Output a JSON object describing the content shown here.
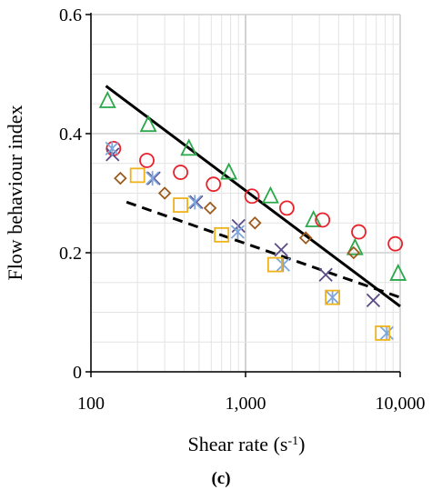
{
  "figure": {
    "caption": "(c)"
  },
  "chart_data": {
    "type": "scatter",
    "xlabel": "Shear rate (s",
    "xlabel_sup": "-1",
    "xlabel_end": ")",
    "ylabel": "Flow behaviour index",
    "x_scale": "log",
    "xlim": [
      100,
      10000
    ],
    "ylim": [
      0,
      0.6
    ],
    "x_ticks": [
      100,
      1000,
      10000
    ],
    "x_tick_labels": [
      "100",
      "1,000",
      "10,000"
    ],
    "y_ticks": [
      0,
      0.2,
      0.4,
      0.6
    ],
    "y_tick_labels": [
      "0",
      "0.2",
      "0.4",
      "0.6"
    ],
    "grid": true,
    "legend": "none",
    "series": [
      {
        "marker": "triangle",
        "color": "#2aa84a",
        "x": [
          128,
          235,
          430,
          780,
          1450,
          2750,
          5100,
          9700
        ],
        "y": [
          0.455,
          0.415,
          0.375,
          0.335,
          0.295,
          0.255,
          0.208,
          0.165
        ]
      },
      {
        "marker": "circle",
        "color": "#e8212a",
        "x": [
          140,
          230,
          380,
          620,
          1100,
          1850,
          3150,
          5400,
          9300
        ],
        "y": [
          0.375,
          0.355,
          0.335,
          0.315,
          0.295,
          0.275,
          0.255,
          0.235,
          0.215
        ]
      },
      {
        "marker": "x",
        "color": "#5b4a86",
        "x": [
          138,
          255,
          480,
          900,
          1700,
          3300,
          6700
        ],
        "y": [
          0.365,
          0.325,
          0.285,
          0.245,
          0.205,
          0.163,
          0.12
        ]
      },
      {
        "marker": "asterisk",
        "color": "#7ea6dc",
        "x": [
          137,
          250,
          470,
          890,
          1750,
          3650,
          8200
        ],
        "y": [
          0.375,
          0.325,
          0.285,
          0.235,
          0.18,
          0.125,
          0.065
        ]
      },
      {
        "marker": "diamond",
        "color": "#9c5a1c",
        "x": [
          155,
          300,
          590,
          1150,
          2450,
          5000
        ],
        "y": [
          0.325,
          0.3,
          0.275,
          0.25,
          0.225,
          0.2
        ]
      },
      {
        "marker": "square",
        "color": "#f0b21a",
        "x": [
          200,
          380,
          700,
          1550,
          3650,
          7700
        ],
        "y": [
          0.33,
          0.28,
          0.23,
          0.18,
          0.125,
          0.065
        ]
      }
    ],
    "lines": [
      {
        "style": "solid",
        "color": "#000000",
        "x": [
          125,
          10000
        ],
        "y": [
          0.48,
          0.11
        ]
      },
      {
        "style": "dashed",
        "color": "#000000",
        "x": [
          170,
          10000
        ],
        "y": [
          0.285,
          0.125
        ]
      }
    ]
  }
}
